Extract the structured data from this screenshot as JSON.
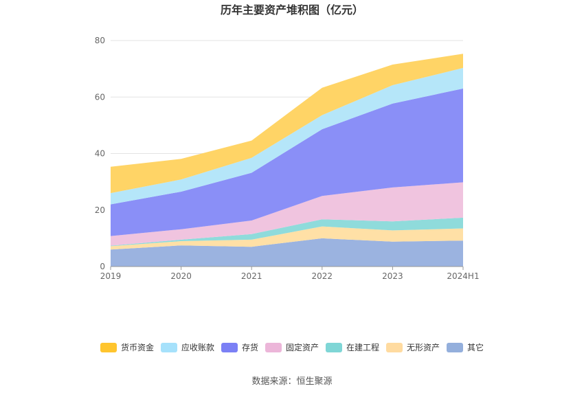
{
  "chart_data": {
    "type": "area",
    "stacked": true,
    "title": "历年主要资产堆积图（亿元）",
    "x": [
      "2019",
      "2020",
      "2021",
      "2022",
      "2023",
      "2024H1"
    ],
    "ylim": [
      0,
      80
    ],
    "yticks": [
      0,
      20,
      40,
      60,
      80
    ],
    "grid": true,
    "legend_position": "bottom",
    "series": [
      {
        "name": "其它",
        "color": "#9bb3e0",
        "values": [
          6.0,
          7.5,
          7.0,
          10.0,
          8.8,
          9.2
        ]
      },
      {
        "name": "无形资产",
        "color": "#ffe0a6",
        "values": [
          1.2,
          1.5,
          2.5,
          4.2,
          4.0,
          4.3
        ]
      },
      {
        "name": "在建工程",
        "color": "#8fdbdb",
        "values": [
          0.2,
          0.5,
          2.0,
          2.5,
          3.2,
          3.8
        ]
      },
      {
        "name": "固定资产",
        "color": "#f0c4df",
        "values": [
          3.4,
          3.7,
          4.8,
          8.3,
          12.0,
          12.5
        ]
      },
      {
        "name": "存货",
        "color": "#8a8ff7",
        "values": [
          11.2,
          13.3,
          16.9,
          23.6,
          29.7,
          33.2
        ]
      },
      {
        "name": "应收账款",
        "color": "#b5e6f9",
        "values": [
          4.0,
          4.3,
          5.3,
          5.0,
          6.5,
          7.3
        ]
      },
      {
        "name": "货币资金",
        "color": "#ffd466",
        "values": [
          9.3,
          7.3,
          6.1,
          9.7,
          7.3,
          5.0
        ]
      }
    ],
    "legend": [
      {
        "name": "货币资金",
        "color": "#ffc52e"
      },
      {
        "name": "应收账款",
        "color": "#a6e1fb"
      },
      {
        "name": "存货",
        "color": "#7b80f5"
      },
      {
        "name": "固定资产",
        "color": "#ecb6d9"
      },
      {
        "name": "在建工程",
        "color": "#7fd6d6"
      },
      {
        "name": "无形资产",
        "color": "#ffdba0"
      },
      {
        "name": "其它",
        "color": "#94afdc"
      }
    ]
  },
  "source_text": "数据来源：恒生聚源"
}
